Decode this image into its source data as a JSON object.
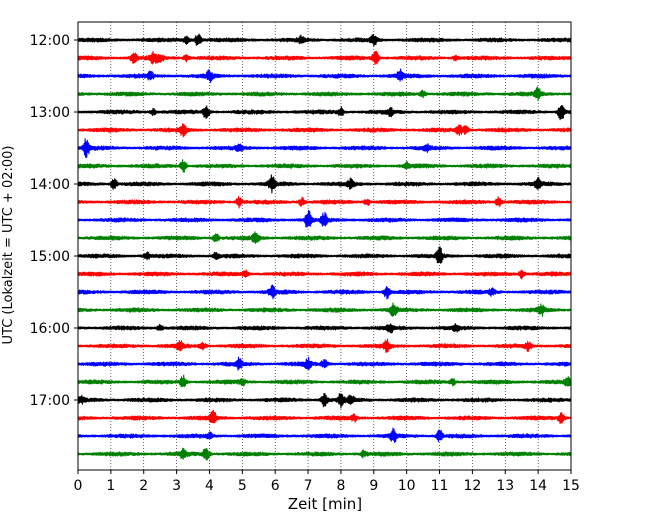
{
  "chart_data": {
    "type": "line",
    "title": "",
    "xlabel": "Zeit  [min]",
    "ylabel": "UTC (Lokalzeit = UTC + 02:00)",
    "xlim": [
      0,
      15
    ],
    "x_ticks": [
      0,
      1,
      2,
      3,
      4,
      5,
      6,
      7,
      8,
      9,
      10,
      11,
      12,
      13,
      14,
      15
    ],
    "y_tick_labels": [
      "12:00",
      "13:00",
      "14:00",
      "15:00",
      "16:00",
      "17:00"
    ],
    "grid": "vertical-dotted",
    "trace_colors": [
      "#000000",
      "#ff0000",
      "#0000ff",
      "#008000"
    ],
    "trace_start_times": [
      "12:00",
      "12:15",
      "12:30",
      "12:45",
      "13:00",
      "13:15",
      "13:30",
      "13:45",
      "14:00",
      "14:15",
      "14:30",
      "14:45",
      "15:00",
      "15:15",
      "15:30",
      "15:45",
      "16:00",
      "16:15",
      "16:30",
      "16:45",
      "17:00",
      "17:15",
      "17:30",
      "17:45"
    ],
    "trace_events": [
      [
        [
          3.3,
          4
        ],
        [
          3.65,
          6
        ],
        [
          6.8,
          3
        ],
        [
          9,
          5
        ]
      ],
      [
        [
          1.7,
          5
        ],
        [
          2.3,
          6
        ],
        [
          2.5,
          4
        ],
        [
          3.3,
          3
        ],
        [
          9.05,
          7
        ],
        [
          11.5,
          2
        ]
      ],
      [
        [
          2.2,
          4
        ],
        [
          4,
          5
        ],
        [
          9.8,
          5
        ]
      ],
      [
        [
          10.5,
          3
        ],
        [
          14,
          6
        ]
      ],
      [
        [
          2.3,
          3
        ],
        [
          3.9,
          7
        ],
        [
          8,
          4
        ],
        [
          9.5,
          3
        ],
        [
          14.7,
          9
        ]
      ],
      [
        [
          3.2,
          6
        ],
        [
          11.6,
          5
        ],
        [
          11.8,
          4
        ]
      ],
      [
        [
          0.25,
          9
        ],
        [
          4.9,
          3
        ],
        [
          10.6,
          3
        ]
      ],
      [
        [
          3.2,
          6
        ],
        [
          10,
          3
        ]
      ],
      [
        [
          1.1,
          5
        ],
        [
          5.9,
          8
        ],
        [
          8.3,
          4
        ],
        [
          14,
          5
        ]
      ],
      [
        [
          4.9,
          5
        ],
        [
          6.8,
          4
        ],
        [
          8.8,
          3
        ],
        [
          12.8,
          5
        ]
      ],
      [
        [
          7,
          10
        ],
        [
          7.5,
          7
        ]
      ],
      [
        [
          4.2,
          4
        ],
        [
          5.4,
          7
        ]
      ],
      [
        [
          2.1,
          3
        ],
        [
          4.2,
          3
        ],
        [
          11,
          8
        ]
      ],
      [
        [
          5.1,
          3
        ],
        [
          13.5,
          4
        ]
      ],
      [
        [
          5.9,
          6
        ],
        [
          9.4,
          6
        ],
        [
          12.6,
          3
        ]
      ],
      [
        [
          9.6,
          7
        ],
        [
          14.1,
          5
        ]
      ],
      [
        [
          2.5,
          3
        ],
        [
          9.5,
          4
        ],
        [
          11.5,
          3
        ]
      ],
      [
        [
          3.1,
          4
        ],
        [
          3.8,
          3
        ],
        [
          9.4,
          5
        ],
        [
          13.7,
          4
        ]
      ],
      [
        [
          4.9,
          5
        ],
        [
          7,
          5
        ],
        [
          7.5,
          4
        ]
      ],
      [
        [
          3.2,
          6
        ],
        [
          5,
          3
        ],
        [
          11.4,
          3
        ],
        [
          14.9,
          4
        ]
      ],
      [
        [
          0.1,
          3
        ],
        [
          7.5,
          7
        ],
        [
          8,
          6
        ],
        [
          8.3,
          4
        ]
      ],
      [
        [
          4.1,
          8
        ],
        [
          8.4,
          3
        ],
        [
          14.7,
          5
        ]
      ],
      [
        [
          4,
          3
        ],
        [
          9.6,
          6
        ],
        [
          11,
          6
        ]
      ],
      [
        [
          3.2,
          5
        ],
        [
          3.9,
          7
        ],
        [
          8.7,
          3
        ]
      ]
    ]
  }
}
